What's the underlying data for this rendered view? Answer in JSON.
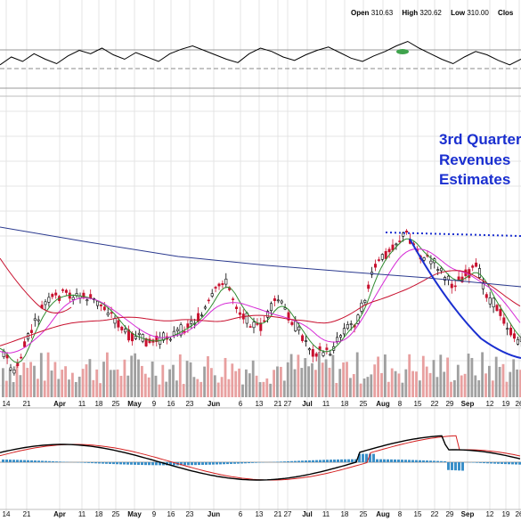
{
  "header": {
    "open_label": "Open",
    "open_value": "310.63",
    "high_label": "High",
    "high_value": "320.62",
    "low_label": "Low",
    "low_value": "310.00",
    "close_label": "Clos"
  },
  "annotation": {
    "line1": "3rd Quarter",
    "line2": "Revenues",
    "line3": "Estimates"
  },
  "colors": {
    "up_candle": "#000000",
    "down_candle": "#c8102e",
    "ma_short": "#2e8b2e",
    "ma_mid": "#d62bd6",
    "ma_long": "#c8102e",
    "ma_200": "#2b3a8f",
    "annotation": "#1a2fd0",
    "macd_line": "#000000",
    "signal_line": "#d42020",
    "histogram": "#3a8fc8",
    "volume_up": "#a0a0a0",
    "volume_down": "#e8a0a0"
  },
  "chart_data": {
    "type": "line",
    "x_tick_labels": [
      "14",
      "21",
      "Apr",
      "11",
      "18",
      "25",
      "May",
      "9",
      "16",
      "23",
      "Jun",
      "6",
      "13",
      "21",
      "27",
      "Jul",
      "11",
      "18",
      "25",
      "Aug",
      "8",
      "15",
      "22",
      "29",
      "Sep",
      "12",
      "19",
      "26"
    ],
    "x_tick_labels_bottom": [
      "14",
      "21",
      "Apr",
      "11",
      "18",
      "25",
      "May",
      "9",
      "16",
      "23",
      "Jun",
      "6",
      "13",
      "21",
      "27",
      "Jul",
      "11",
      "18",
      "25",
      "Aug",
      "8",
      "15",
      "22",
      "29",
      "Sep",
      "12",
      "19",
      "26"
    ],
    "grid": true,
    "panels": [
      "rsi",
      "price_volume",
      "macd"
    ],
    "series": [
      {
        "values": [
          45,
          52,
          48,
          55,
          50,
          46,
          53,
          58,
          55,
          60,
          54,
          50,
          56,
          52,
          48,
          55,
          59,
          62,
          58,
          54,
          50,
          47,
          55,
          60,
          57,
          52,
          49,
          54,
          58,
          61,
          56,
          51,
          48,
          53,
          57,
          62,
          66,
          60,
          55,
          50,
          46,
          52,
          57,
          54,
          49,
          45,
          50
        ]
      },
      {
        "values": [
          325,
          318,
          312,
          306,
          300,
          296,
          300,
          304,
          300,
          296,
          292,
          296,
          300,
          304,
          308,
          304,
          300,
          304,
          308,
          312,
          316,
          312,
          306,
          302,
          298,
          296,
          300,
          304,
          308,
          312,
          316,
          320,
          316,
          312,
          308,
          304,
          300,
          296,
          292
        ]
      }
    ],
    "annotations": [
      "3rd Quarter Revenues Estimates"
    ]
  }
}
